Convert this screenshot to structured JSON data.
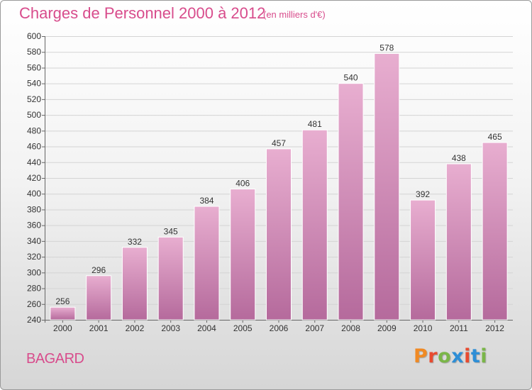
{
  "title": "Charges de Personnel 2000 à 2012",
  "subtitle": "(en milliers d'€)",
  "commune": "BAGARD",
  "brand": {
    "letters": [
      "P",
      "r",
      "o",
      "x",
      "i",
      "t",
      "i"
    ],
    "colors": [
      "#f08a24",
      "#e84b30",
      "#7ab648",
      "#2d8ed6",
      "#e84b30",
      "#2d8ed6",
      "#7ab648"
    ]
  },
  "colors": {
    "bar_top": "#e8aed0",
    "bar_bottom": "#b56a9c",
    "text_accent": "#d84c8c"
  },
  "chart_data": {
    "type": "bar",
    "categories": [
      "2000",
      "2001",
      "2002",
      "2003",
      "2004",
      "2005",
      "2006",
      "2007",
      "2008",
      "2009",
      "2010",
      "2011",
      "2012"
    ],
    "values": [
      256,
      296,
      332,
      345,
      384,
      406,
      457,
      481,
      540,
      578,
      392,
      438,
      465
    ],
    "ylim": [
      240,
      600
    ],
    "yticks": [
      240,
      260,
      280,
      300,
      320,
      340,
      360,
      380,
      400,
      420,
      440,
      460,
      480,
      500,
      520,
      540,
      560,
      580,
      600
    ],
    "grid": true
  }
}
